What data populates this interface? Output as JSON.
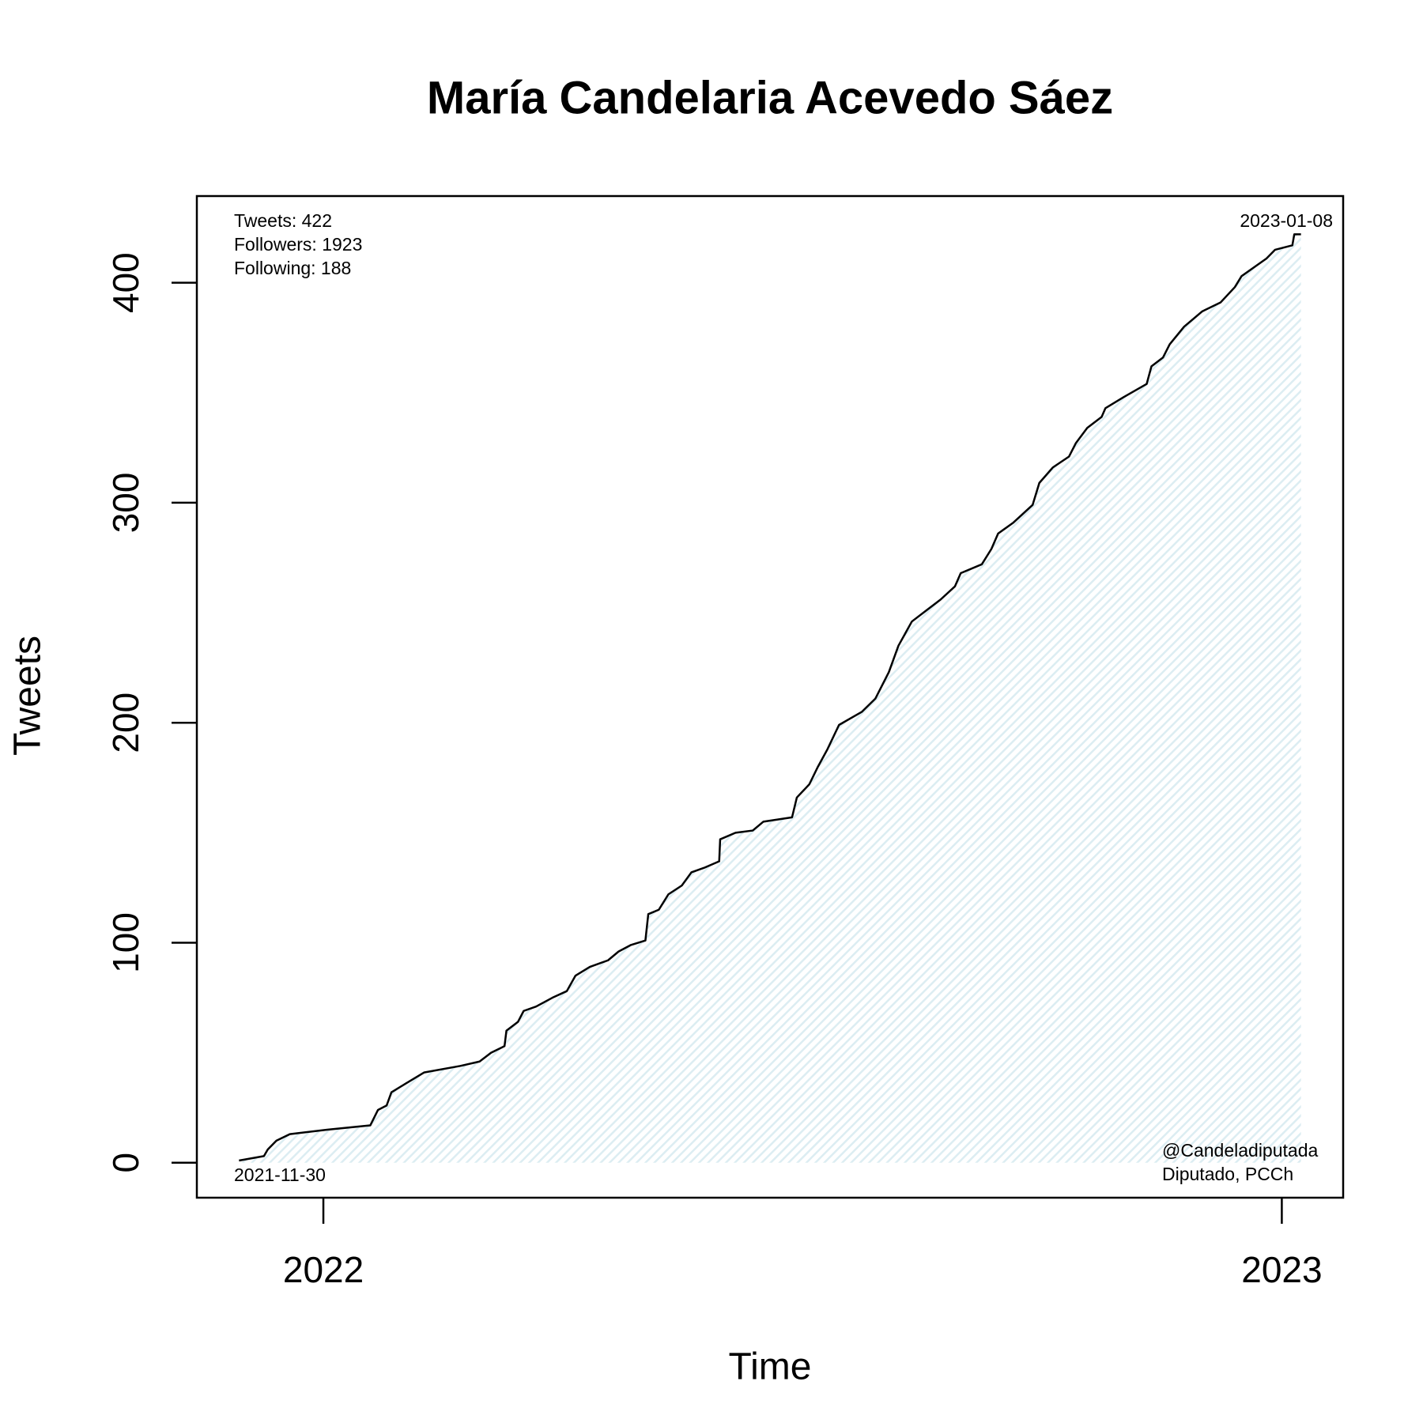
{
  "chart_data": {
    "type": "line",
    "title": "María Candelaria Acevedo Sáez",
    "x_label": "Time",
    "y_label": "Tweets",
    "stats": [
      "Tweets: 422",
      "Followers: 1923",
      "Following: 188"
    ],
    "start_label": "2021-11-30",
    "end_label": "2023-01-08",
    "handle": "@Candeladiputada",
    "affiliation": "Diputado, PCCh",
    "xlim": [
      2021.868,
      2023.064
    ],
    "xticks": [
      2022,
      2023
    ],
    "ylim": [
      -15.9,
      439.4
    ],
    "yticks": [
      0,
      100,
      200,
      300,
      400
    ],
    "fill_color": "#dcedf2",
    "series": [
      {
        "color": "#000000",
        "x": [
          2021.912,
          2021.938,
          2021.942,
          2021.951,
          2021.965,
          2022.004,
          2022.049,
          2022.057,
          2022.066,
          2022.071,
          2022.086,
          2022.105,
          2022.143,
          2022.163,
          2022.175,
          2022.189,
          2022.191,
          2022.203,
          2022.209,
          2022.222,
          2022.239,
          2022.254,
          2022.263,
          2022.278,
          2022.297,
          2022.308,
          2022.321,
          2022.336,
          2022.339,
          2022.35,
          2022.36,
          2022.374,
          2022.384,
          2022.397,
          2022.413,
          2022.414,
          2022.43,
          2022.448,
          2022.459,
          2022.489,
          2022.494,
          2022.507,
          2022.516,
          2022.526,
          2022.538,
          2022.562,
          2022.576,
          2022.59,
          2022.6,
          2022.614,
          2022.629,
          2022.644,
          2022.659,
          2022.665,
          2022.687,
          2022.697,
          2022.704,
          2022.72,
          2022.73,
          2022.74,
          2022.747,
          2022.761,
          2022.778,
          2022.785,
          2022.797,
          2022.812,
          2022.816,
          2022.835,
          2022.859,
          2022.864,
          2022.876,
          2022.883,
          2022.898,
          2022.917,
          2022.936,
          2022.951,
          2022.958,
          2022.971,
          2022.984,
          2022.993,
          2023.011,
          2023.013,
          2023.02
        ],
        "values": [
          1,
          3,
          6,
          10,
          13,
          15,
          17,
          24,
          26,
          32,
          36,
          41,
          44,
          46,
          50,
          53,
          60,
          64,
          69,
          71,
          75,
          78,
          85,
          89,
          92,
          96,
          99,
          101,
          113,
          115,
          122,
          126,
          132,
          134,
          137,
          147,
          150,
          151,
          155,
          157,
          166,
          172,
          180,
          188,
          199,
          205,
          211,
          223,
          235,
          246,
          251,
          256,
          262,
          268,
          272,
          279,
          286,
          291,
          295,
          299,
          309,
          316,
          321,
          327,
          334,
          339,
          343,
          348,
          354,
          362,
          366,
          372,
          380,
          387,
          391,
          398,
          403,
          407,
          411,
          415,
          417,
          422,
          422
        ]
      }
    ]
  }
}
